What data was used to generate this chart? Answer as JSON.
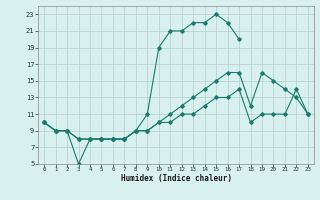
{
  "xlabel": "Humidex (Indice chaleur)",
  "x_all": [
    0,
    1,
    2,
    3,
    4,
    5,
    6,
    7,
    8,
    9,
    10,
    11,
    12,
    13,
    14,
    15,
    16,
    17,
    18,
    19,
    20,
    21,
    22,
    23
  ],
  "line1_x": [
    0,
    1,
    2,
    3,
    4,
    5,
    6,
    7,
    8,
    9,
    10,
    11,
    12,
    13,
    14,
    15,
    16,
    17
  ],
  "line1_y": [
    10,
    9,
    9,
    5,
    8,
    8,
    8,
    8,
    9,
    11,
    19,
    21,
    21,
    22,
    22,
    23,
    22,
    20
  ],
  "line2_y": [
    10,
    9,
    9,
    8,
    8,
    8,
    8,
    8,
    9,
    9,
    10,
    11,
    12,
    13,
    14,
    15,
    16,
    16,
    12,
    16,
    15,
    14,
    13,
    11
  ],
  "line3_y": [
    10,
    9,
    9,
    8,
    8,
    8,
    8,
    8,
    9,
    9,
    10,
    10,
    11,
    11,
    12,
    13,
    13,
    14,
    10,
    11,
    11,
    11,
    14,
    11
  ],
  "ylim": [
    5,
    24
  ],
  "xlim": [
    -0.5,
    23.5
  ],
  "yticks": [
    5,
    7,
    9,
    11,
    13,
    15,
    17,
    19,
    21,
    23
  ],
  "xticks": [
    0,
    1,
    2,
    3,
    4,
    5,
    6,
    7,
    8,
    9,
    10,
    11,
    12,
    13,
    14,
    15,
    16,
    17,
    18,
    19,
    20,
    21,
    22,
    23
  ],
  "line_color": "#1a7a6e",
  "bg_color": "#d8f0ee",
  "grid_color": "#b0cece"
}
